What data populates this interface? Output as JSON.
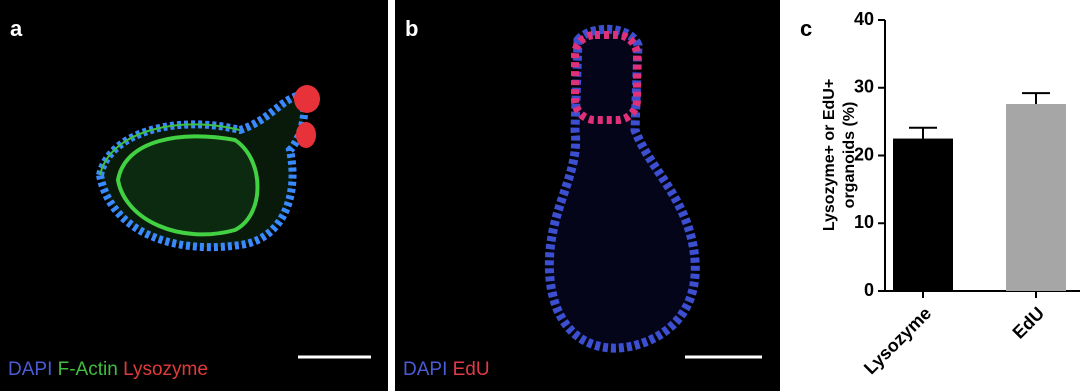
{
  "panels": [
    {
      "label": "a",
      "legend": [
        {
          "text": "DAPI",
          "color": "#4b5bd6"
        },
        {
          "text": "F-Actin",
          "color": "#3fbf3f"
        },
        {
          "text": "Lysozyme",
          "color": "#e03a3a"
        }
      ]
    },
    {
      "label": "b",
      "legend": [
        {
          "text": "DAPI",
          "color": "#4b5bd6"
        },
        {
          "text": "EdU",
          "color": "#e03a4a"
        }
      ]
    }
  ],
  "chart_data": {
    "type": "bar",
    "label": "c",
    "ylabel": [
      "Lysozyme+ or EdU+",
      "organoids (%)"
    ],
    "categories": [
      "Lysozyme",
      "EdU"
    ],
    "values": [
      22.5,
      27.6
    ],
    "errors": [
      1.6,
      1.6
    ],
    "colors": [
      "#000000",
      "#a6a6a6"
    ],
    "ylim": [
      0,
      40
    ],
    "yticks": [
      0,
      10,
      20,
      30,
      40
    ]
  }
}
